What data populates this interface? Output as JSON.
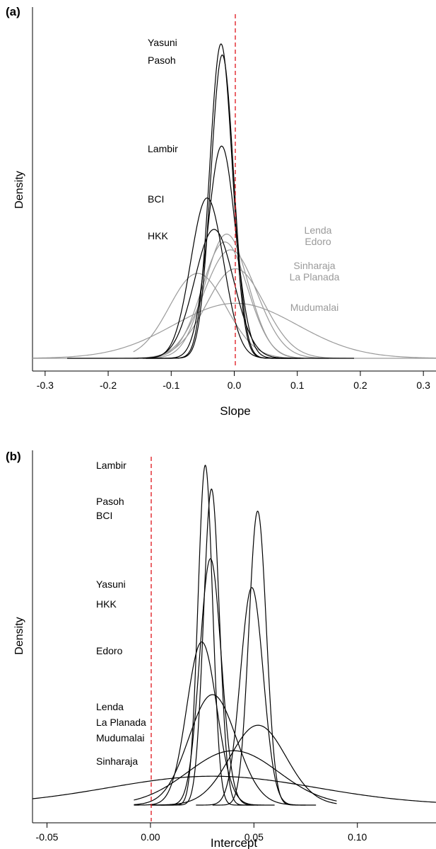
{
  "chart_data": [
    {
      "panel": "(a)",
      "type": "line",
      "xlabel": "Slope",
      "ylabel": "Density",
      "xlim": [
        -0.32,
        0.32
      ],
      "xticks": [
        "-0.3",
        "-0.2",
        "-0.1",
        "0.0",
        "0.1",
        "0.2",
        "0.3"
      ],
      "xtick_values": [
        -0.3,
        -0.2,
        -0.1,
        0.0,
        0.1,
        0.2,
        0.3
      ],
      "reference_line": {
        "x": 0.0,
        "color": "#e0242b",
        "style": "dashed"
      },
      "series": [
        {
          "name": "Yasuni",
          "mean": -0.021,
          "sd": 0.018,
          "peak": 1.0,
          "range": [
            -0.145,
            0.1
          ],
          "color": "#000000"
        },
        {
          "name": "Pasoh",
          "mean": -0.019,
          "sd": 0.018,
          "peak": 0.965,
          "range": [
            -0.14,
            0.105
          ],
          "color": "#000000"
        },
        {
          "name": "Lambir",
          "mean": -0.02,
          "sd": 0.022,
          "peak": 0.675,
          "range": [
            -0.14,
            0.11
          ],
          "color": "#000000"
        },
        {
          "name": "BCI",
          "mean": -0.043,
          "sd": 0.026,
          "peak": 0.51,
          "range": [
            -0.265,
            0.09
          ],
          "color": "#000000"
        },
        {
          "name": "HKK",
          "mean": -0.032,
          "sd": 0.031,
          "peak": 0.41,
          "range": [
            -0.155,
            0.19
          ],
          "color": "#000000"
        },
        {
          "name": "Lenda",
          "mean": -0.012,
          "sd": 0.034,
          "peak": 0.395,
          "range": [
            -0.16,
            0.15
          ],
          "color": "#9a9a9a"
        },
        {
          "name": "Edoro",
          "mean": -0.015,
          "sd": 0.036,
          "peak": 0.37,
          "range": [
            -0.16,
            0.15
          ],
          "color": "#9a9a9a"
        },
        {
          "name": "Sinharaja",
          "mean": -0.006,
          "sd": 0.042,
          "peak": 0.345,
          "range": [
            -0.16,
            0.15
          ],
          "color": "#9a9a9a"
        },
        {
          "name": "La Planada",
          "mean": -0.058,
          "sd": 0.045,
          "peak": 0.27,
          "range": [
            -0.16,
            0.15
          ],
          "color": "#9a9a9a"
        },
        {
          "name": "Mudumalai",
          "mean": 0.002,
          "sd": 0.098,
          "peak": 0.175,
          "range": [
            -0.32,
            0.32
          ],
          "color": "#9a9a9a"
        },
        {
          "name": "",
          "mean": 0.002,
          "sd": 0.046,
          "peak": 0.285,
          "range": [
            -0.32,
            0.32
          ],
          "color": "#9a9a9a"
        }
      ],
      "labels": [
        {
          "text": "Yasuni",
          "color": "#000000"
        },
        {
          "text": "Pasoh",
          "color": "#000000"
        },
        {
          "text": "Lambir",
          "color": "#000000"
        },
        {
          "text": "BCI",
          "color": "#000000"
        },
        {
          "text": "HKK",
          "color": "#000000"
        },
        {
          "text": "Lenda",
          "color": "#9a9a9a"
        },
        {
          "text": "Edoro",
          "color": "#9a9a9a"
        },
        {
          "text": "Sinharaja",
          "color": "#9a9a9a"
        },
        {
          "text": "La Planada",
          "color": "#9a9a9a"
        },
        {
          "text": "Mudumalai",
          "color": "#9a9a9a"
        }
      ]
    },
    {
      "panel": "(b)",
      "type": "line",
      "xlabel": "Intercept",
      "ylabel": "Density",
      "xlim": [
        -0.057,
        0.138
      ],
      "xticks": [
        "-0.05",
        "0.00",
        "0.05",
        "0.10"
      ],
      "xtick_values": [
        -0.05,
        0.0,
        0.05,
        0.1
      ],
      "reference_line": {
        "x": 0.0,
        "color": "#e0242b",
        "style": "dashed"
      },
      "series": [
        {
          "name": "Lambir",
          "mean": 0.0265,
          "sd": 0.0035,
          "peak": 1.0,
          "range": [
            0.0,
            0.05
          ],
          "color": "#000000"
        },
        {
          "name": "Pasoh",
          "mean": 0.0295,
          "sd": 0.0038,
          "peak": 0.93,
          "range": [
            0.0,
            0.052
          ],
          "color": "#000000"
        },
        {
          "name": "BCI",
          "mean": 0.0518,
          "sd": 0.0042,
          "peak": 0.865,
          "range": [
            0.03,
            0.08
          ],
          "color": "#000000"
        },
        {
          "name": "Yasuni",
          "mean": 0.029,
          "sd": 0.0052,
          "peak": 0.725,
          "range": [
            0.005,
            0.055
          ],
          "color": "#000000"
        },
        {
          "name": "HKK",
          "mean": 0.049,
          "sd": 0.0055,
          "peak": 0.64,
          "range": [
            0.022,
            0.075
          ],
          "color": "#000000"
        },
        {
          "name": "Edoro",
          "mean": 0.0248,
          "sd": 0.0072,
          "peak": 0.48,
          "range": [
            -0.008,
            0.06
          ],
          "color": "#000000"
        },
        {
          "name": "Lenda",
          "mean": 0.03,
          "sd": 0.0115,
          "peak": 0.325,
          "range": [
            -0.008,
            0.07
          ],
          "color": "#000000"
        },
        {
          "name": "La Planada",
          "mean": 0.052,
          "sd": 0.0135,
          "peak": 0.235,
          "range": [
            0.0,
            0.09
          ],
          "color": "#000000"
        },
        {
          "name": "Mudumalai",
          "mean": 0.04,
          "sd": 0.022,
          "peak": 0.16,
          "range": [
            -0.008,
            0.09
          ],
          "color": "#000000"
        },
        {
          "name": "Sinharaja",
          "mean": 0.03,
          "sd": 0.05,
          "peak": 0.085,
          "range": [
            -0.057,
            0.138
          ],
          "color": "#000000"
        }
      ],
      "labels": [
        {
          "text": "Lambir",
          "color": "#000000"
        },
        {
          "text": "Pasoh",
          "color": "#000000"
        },
        {
          "text": "BCI",
          "color": "#000000"
        },
        {
          "text": "Yasuni",
          "color": "#000000"
        },
        {
          "text": "HKK",
          "color": "#000000"
        },
        {
          "text": "Edoro",
          "color": "#000000"
        },
        {
          "text": "Lenda",
          "color": "#000000"
        },
        {
          "text": "La Planada",
          "color": "#000000"
        },
        {
          "text": "Mudumalai",
          "color": "#000000"
        },
        {
          "text": "Sinharaja",
          "color": "#000000"
        }
      ]
    }
  ]
}
